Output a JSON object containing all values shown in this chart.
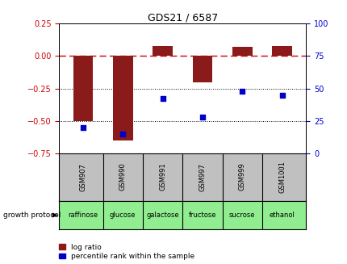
{
  "title": "GDS21 / 6587",
  "samples": [
    "GSM907",
    "GSM990",
    "GSM991",
    "GSM997",
    "GSM999",
    "GSM1001"
  ],
  "log_ratio": [
    -0.5,
    -0.65,
    0.08,
    -0.2,
    0.07,
    0.08
  ],
  "percentile_rank": [
    20,
    15,
    42,
    28,
    48,
    45
  ],
  "protocols": [
    "raffinose",
    "glucose",
    "galactose",
    "fructose",
    "sucrose",
    "ethanol"
  ],
  "ylim_left": [
    -0.75,
    0.25
  ],
  "ylim_right": [
    0,
    100
  ],
  "bar_color": "#8B1A1A",
  "dot_color": "#0000CD",
  "dashed_line_color": "#CC0000",
  "bg_color_sample": "#C0C0C0",
  "bg_color_protocol": "#90EE90",
  "grid_color": "#000000",
  "left_axis_color": "#CC0000",
  "right_axis_color": "#0000CD",
  "yticks_left": [
    0.25,
    0.0,
    -0.25,
    -0.5,
    -0.75
  ],
  "yticks_right": [
    100,
    75,
    50,
    25,
    0
  ],
  "bar_width": 0.5,
  "title_fontsize": 9,
  "tick_fontsize": 7,
  "sample_fontsize": 6,
  "protocol_fontsize": 6,
  "legend_fontsize": 6.5
}
